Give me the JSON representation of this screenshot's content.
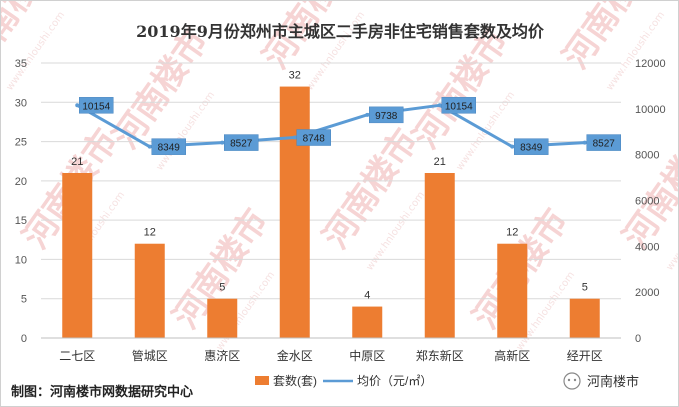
{
  "chart_data": {
    "type": "bar",
    "title": "2019年9月份郑州市主城区二手房非住宅销售套数及均价",
    "categories": [
      "二七区",
      "管城区",
      "惠济区",
      "金水区",
      "中原区",
      "郑东新区",
      "高新区",
      "经开区"
    ],
    "series": [
      {
        "name": "套数(套)",
        "type": "bar",
        "axis": "left",
        "color": "#ED7D31",
        "values": [
          21,
          12,
          5,
          32,
          4,
          21,
          12,
          5
        ]
      },
      {
        "name": "均价（元/㎡）",
        "type": "line",
        "axis": "right",
        "color": "#5B9BD5",
        "values": [
          10154,
          8349,
          8527,
          8748,
          9738,
          10154,
          8349,
          8527
        ]
      }
    ],
    "y_left": {
      "min": 0,
      "max": 35,
      "ticks": [
        0,
        5,
        10,
        15,
        20,
        25,
        30,
        35
      ]
    },
    "y_right": {
      "min": 0,
      "max": 12000,
      "ticks": [
        0,
        2000,
        4000,
        6000,
        8000,
        10000,
        12000
      ]
    },
    "grid": true,
    "legend_position": "bottom"
  },
  "footer": {
    "source": "制图：河南楼市网数据研究中心",
    "brand": "河南楼市"
  },
  "watermark": {
    "text": "河南楼市",
    "url": "www.hnloushi.com"
  },
  "colors": {
    "bar": "#ED7D31",
    "line": "#5B9BD5",
    "label_box": "#5B9BD5"
  }
}
